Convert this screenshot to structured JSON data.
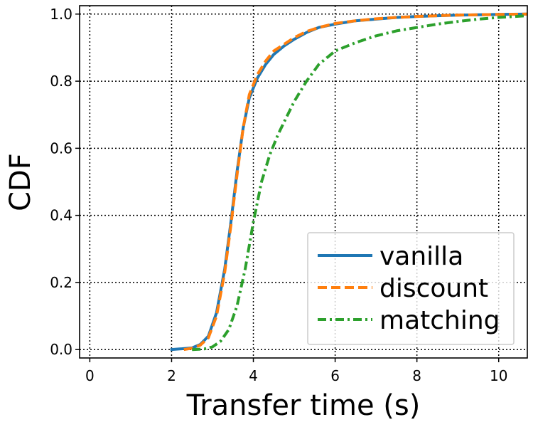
{
  "chart_data": {
    "type": "line",
    "title": "",
    "xlabel": "Transfer time (s)",
    "ylabel": "CDF",
    "xlim": [
      -0.25,
      10.7
    ],
    "ylim": [
      -0.025,
      1.025
    ],
    "xticks": [
      0,
      2,
      4,
      6,
      8,
      10
    ],
    "xtick_labels": [
      "0",
      "2",
      "4",
      "6",
      "8",
      "10"
    ],
    "yticks": [
      0.0,
      0.2,
      0.4,
      0.6,
      0.8,
      1.0
    ],
    "ytick_labels": [
      "0.0",
      "0.2",
      "0.4",
      "0.6",
      "0.8",
      "1.0"
    ],
    "grid": true,
    "legend_position": "lower-right",
    "series": [
      {
        "name": "vanilla",
        "color": "#1f77b4",
        "style": "solid",
        "x": [
          1.97,
          2.2,
          2.5,
          2.7,
          2.9,
          3.1,
          3.3,
          3.45,
          3.6,
          3.75,
          3.9,
          4.1,
          4.3,
          4.5,
          4.75,
          5.0,
          5.3,
          5.6,
          6.0,
          6.5,
          7.0,
          7.5,
          8.0,
          8.5,
          9.0,
          9.5,
          10.0,
          10.7
        ],
        "y": [
          0.0,
          0.002,
          0.005,
          0.015,
          0.04,
          0.11,
          0.24,
          0.38,
          0.53,
          0.66,
          0.75,
          0.81,
          0.85,
          0.88,
          0.905,
          0.925,
          0.945,
          0.96,
          0.97,
          0.98,
          0.985,
          0.99,
          0.993,
          0.995,
          0.997,
          0.998,
          0.999,
          1.0
        ]
      },
      {
        "name": "discount",
        "color": "#ff7f0e",
        "style": "dashed",
        "x": [
          2.3,
          2.5,
          2.7,
          2.9,
          3.1,
          3.3,
          3.45,
          3.6,
          3.75,
          3.9,
          4.1,
          4.3,
          4.5,
          4.75,
          5.0,
          5.3,
          5.6,
          6.0,
          6.5,
          7.0,
          7.5,
          8.0,
          8.5,
          9.0,
          9.5,
          10.0,
          10.7
        ],
        "y": [
          0.0,
          0.004,
          0.013,
          0.035,
          0.1,
          0.23,
          0.37,
          0.52,
          0.66,
          0.76,
          0.82,
          0.86,
          0.89,
          0.91,
          0.93,
          0.948,
          0.96,
          0.972,
          0.98,
          0.986,
          0.99,
          0.993,
          0.995,
          0.997,
          0.998,
          0.999,
          1.0
        ]
      },
      {
        "name": "matching",
        "color": "#2ca02c",
        "style": "dashdot",
        "x": [
          2.5,
          2.8,
          3.0,
          3.2,
          3.4,
          3.6,
          3.8,
          4.0,
          4.2,
          4.4,
          4.6,
          4.8,
          5.0,
          5.3,
          5.6,
          6.0,
          6.5,
          7.0,
          7.5,
          8.0,
          8.5,
          9.0,
          9.5,
          10.0,
          10.7
        ],
        "y": [
          0.0,
          0.002,
          0.008,
          0.025,
          0.06,
          0.13,
          0.24,
          0.38,
          0.5,
          0.58,
          0.64,
          0.69,
          0.74,
          0.8,
          0.85,
          0.89,
          0.915,
          0.935,
          0.95,
          0.96,
          0.97,
          0.978,
          0.985,
          0.99,
          0.995
        ]
      }
    ]
  }
}
